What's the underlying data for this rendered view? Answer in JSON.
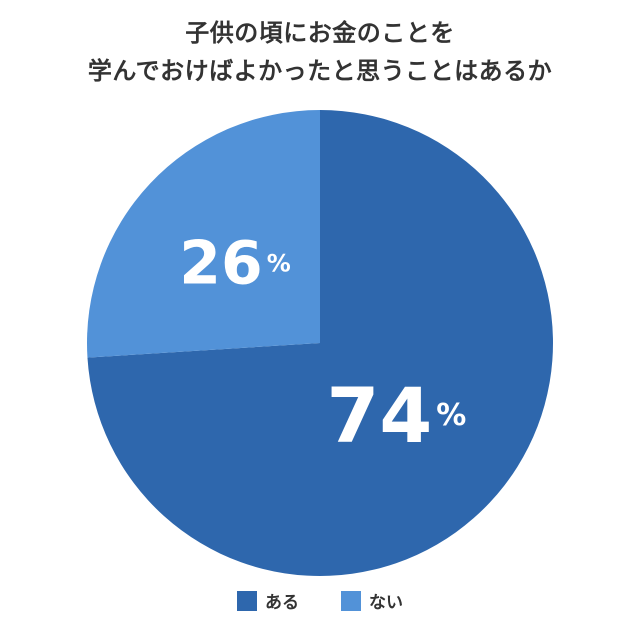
{
  "title": {
    "line1": "子供の頃にお金のことを",
    "line2": "学んでおけばよかったと思うことはあるか"
  },
  "chart_data": {
    "type": "pie",
    "title": "子供の頃にお金のことを学んでおけばよかったと思うことはあるか",
    "slices": [
      {
        "label": "ある",
        "value": 74,
        "display": "74",
        "color": "#2e67ad"
      },
      {
        "label": "ない",
        "value": 26,
        "display": "26",
        "color": "#5292d8"
      }
    ],
    "unit": "%",
    "start_angle_deg": 0,
    "direction": "clockwise",
    "legend_position": "bottom"
  },
  "legend": {
    "items": [
      {
        "label": "ある",
        "color": "#2e67ad"
      },
      {
        "label": "ない",
        "color": "#5292d8"
      }
    ]
  }
}
